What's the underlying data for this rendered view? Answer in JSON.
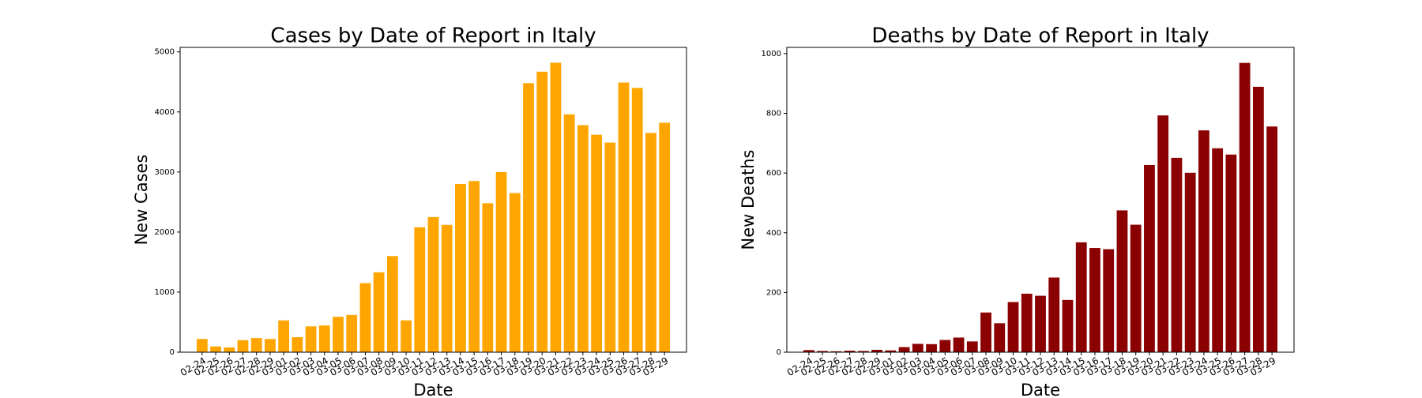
{
  "chart_data": [
    {
      "type": "bar",
      "title": "Cases by Date of Report in Italy",
      "x_label": "Date",
      "y_label": "New Cases",
      "color": "#ffa500",
      "categories": [
        "02-24",
        "02-25",
        "02-26",
        "02-27",
        "02-28",
        "02-29",
        "03-01",
        "03-02",
        "03-03",
        "03-04",
        "03-05",
        "03-06",
        "03-07",
        "03-08",
        "03-09",
        "03-10",
        "03-11",
        "03-12",
        "03-13",
        "03-14",
        "03-15",
        "03-16",
        "03-17",
        "03-18",
        "03-19",
        "03-20",
        "03-21",
        "03-22",
        "03-23",
        "03-24",
        "03-25",
        "03-26",
        "03-27",
        "03-28",
        "03-29"
      ],
      "values": [
        220,
        95,
        80,
        200,
        235,
        220,
        530,
        250,
        430,
        445,
        590,
        620,
        1150,
        1330,
        1600,
        530,
        2080,
        2250,
        2120,
        2800,
        2850,
        2480,
        3000,
        2650,
        4480,
        4670,
        4820,
        3960,
        3780,
        3620,
        3490,
        4490,
        4400,
        3650,
        3820
      ],
      "ylim": [
        0,
        5075
      ],
      "yticks": [
        0,
        1000,
        2000,
        3000,
        4000,
        5000
      ]
    },
    {
      "type": "bar",
      "title": "Deaths by Date of Report in Italy",
      "x_label": "Date",
      "y_label": "New Deaths",
      "color": "#8b0000",
      "categories": [
        "02-24",
        "02-25",
        "02-26",
        "02-27",
        "02-28",
        "02-29",
        "03-01",
        "03-02",
        "03-03",
        "03-04",
        "03-05",
        "03-06",
        "03-07",
        "03-08",
        "03-09",
        "03-10",
        "03-11",
        "03-12",
        "03-13",
        "03-14",
        "03-15",
        "03-16",
        "03-17",
        "03-18",
        "03-19",
        "03-20",
        "03-21",
        "03-22",
        "03-23",
        "03-24",
        "03-25",
        "03-26",
        "03-27",
        "03-28",
        "03-29"
      ],
      "values": [
        7,
        4,
        3,
        5,
        4,
        8,
        6,
        17,
        28,
        27,
        41,
        49,
        36,
        133,
        97,
        168,
        196,
        189,
        250,
        175,
        368,
        349,
        345,
        475,
        427,
        627,
        793,
        651,
        601,
        743,
        683,
        662,
        969,
        889,
        756
      ],
      "ylim": [
        0,
        1021
      ],
      "yticks": [
        0,
        200,
        400,
        600,
        800,
        1000
      ]
    }
  ]
}
